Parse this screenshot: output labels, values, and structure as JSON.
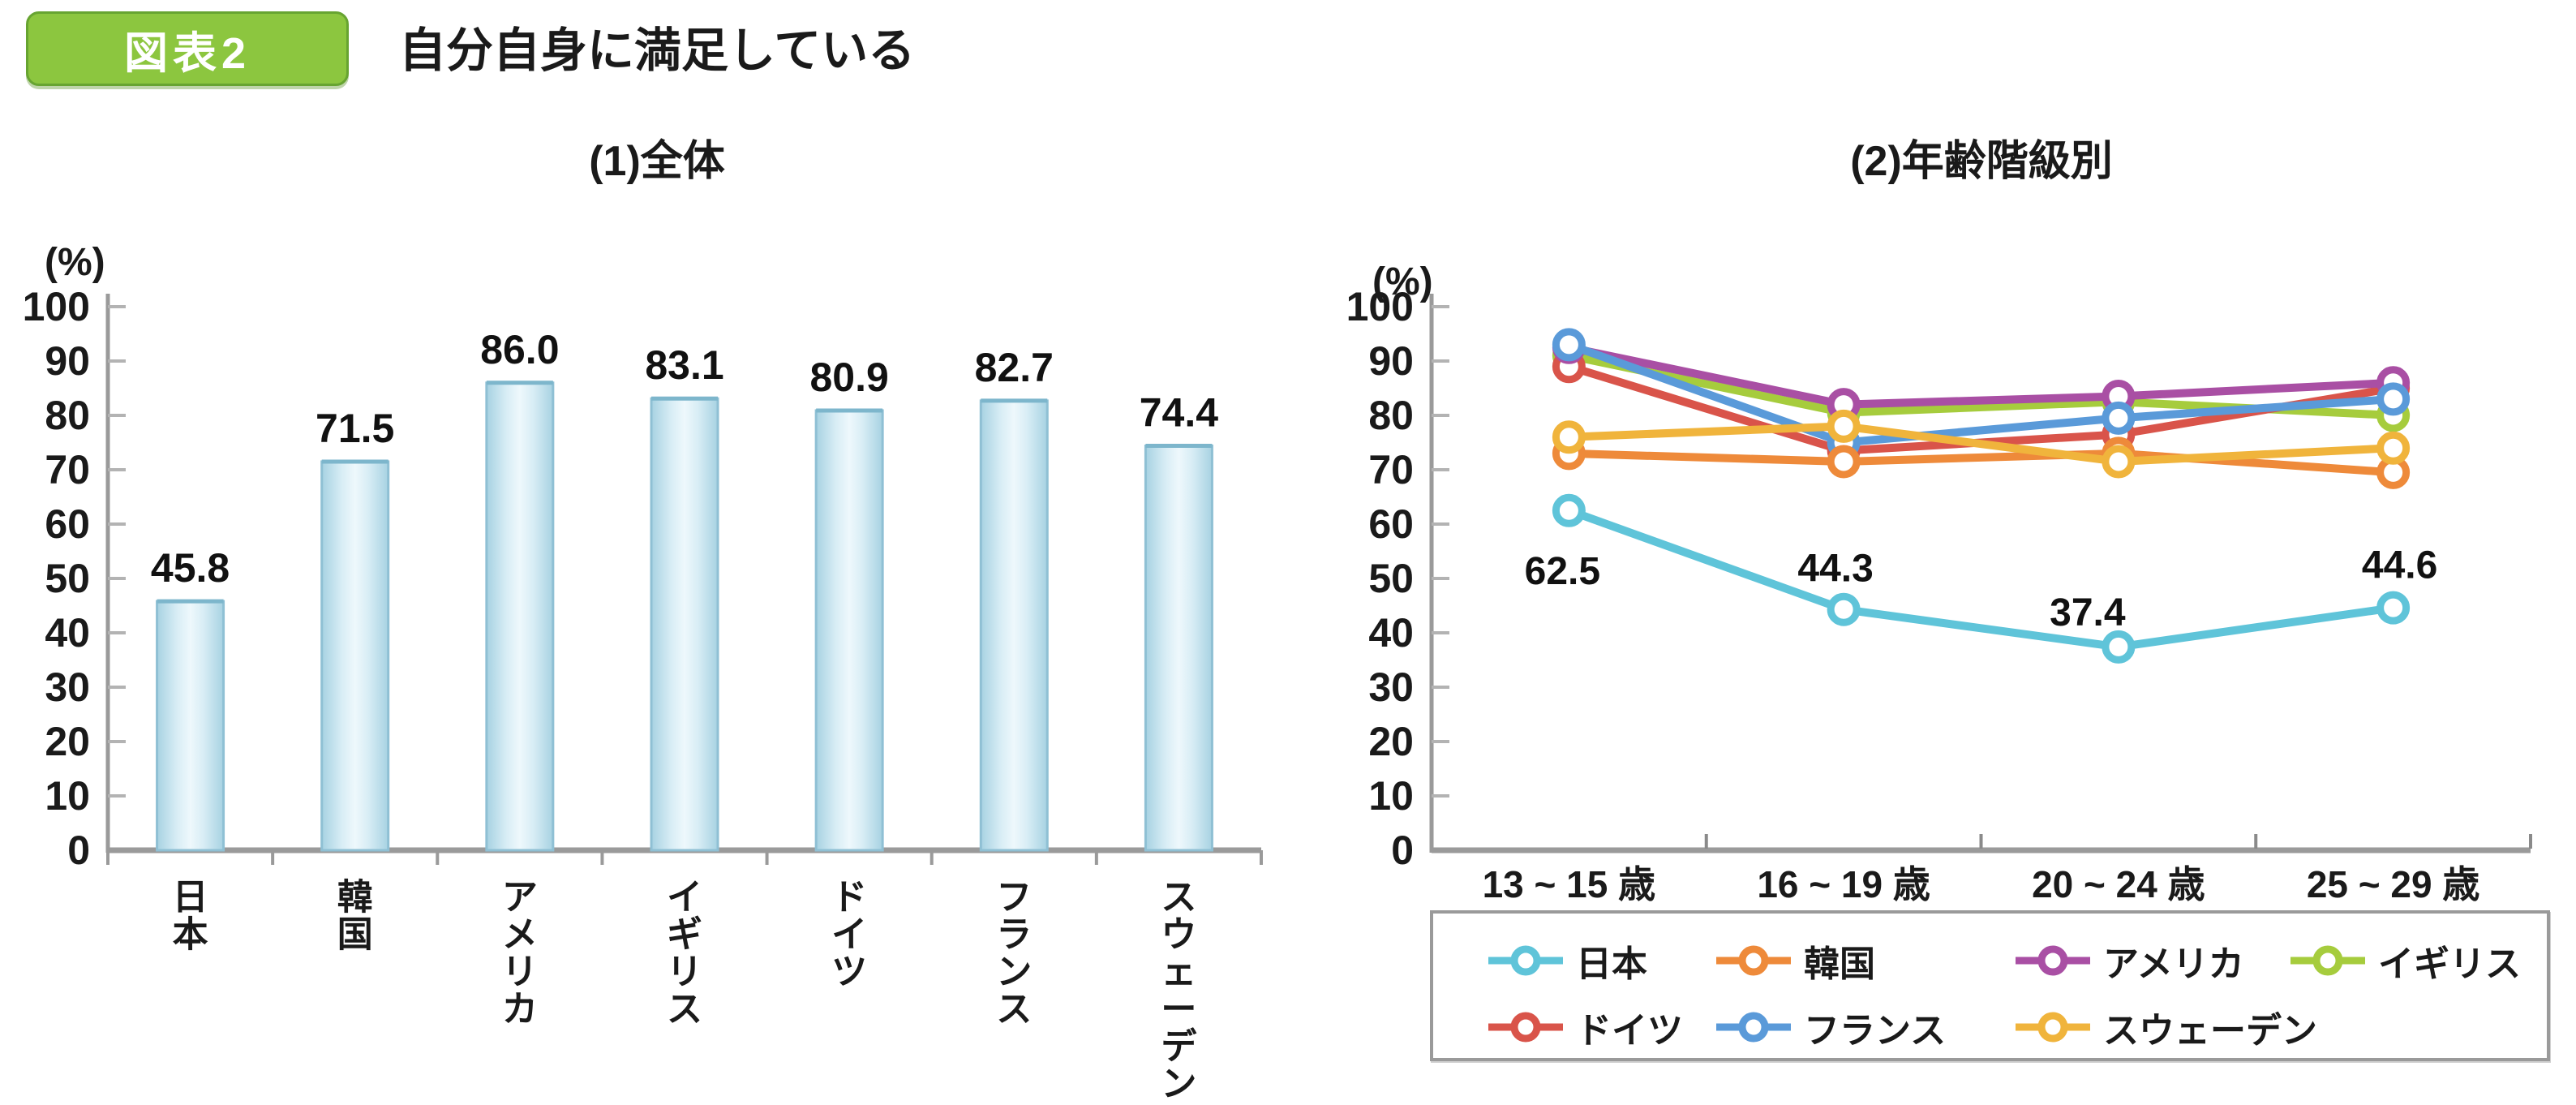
{
  "header": {
    "badge": "図表2",
    "title": "自分自身に満足している"
  },
  "colors": {
    "badge_green": "#8cc63f",
    "axis": "#9a9a9a",
    "tick": "#b3b3b3",
    "text": "#1a1a1a",
    "bar_fill_edge": "#a7d2e2",
    "bar_fill_center": "#eef8fc",
    "bar_stroke": "#8fc0d4"
  },
  "chart_data": [
    {
      "type": "bar",
      "title": "(1)全体",
      "unit_label": "(%)",
      "ylim": [
        0,
        100
      ],
      "ytick_step": 10,
      "grid": false,
      "categories": [
        "日本",
        "韓国",
        "アメリカ",
        "イギリス",
        "ドイツ",
        "フランス",
        "スウェーデン"
      ],
      "values": [
        45.8,
        71.5,
        86.0,
        83.1,
        80.9,
        82.7,
        74.4
      ]
    },
    {
      "type": "line",
      "title": "(2)年齢階級別",
      "unit_label": "(%)",
      "ylim": [
        0,
        100
      ],
      "ytick_step": 10,
      "grid": false,
      "legend_position": "bottom",
      "categories": [
        "13 ~ 15 歳",
        "16 ~ 19 歳",
        "20 ~ 24 歳",
        "25 ~ 29 歳"
      ],
      "series": [
        {
          "name": "イギリス",
          "color": "#a6cc3d",
          "values": [
            91.0,
            80.5,
            82.5,
            80.0
          ]
        },
        {
          "name": "ドイツ",
          "color": "#d9544a",
          "values": [
            89.0,
            73.5,
            76.5,
            85.0
          ]
        },
        {
          "name": "アメリカ",
          "color": "#a94fa4",
          "values": [
            92.5,
            82.0,
            83.5,
            86.0
          ]
        },
        {
          "name": "フランス",
          "color": "#5a9ad9",
          "values": [
            93.0,
            75.0,
            79.5,
            83.0
          ]
        },
        {
          "name": "韓国",
          "color": "#ee8a3a",
          "values": [
            73.0,
            71.5,
            73.0,
            69.5
          ]
        },
        {
          "name": "スウェーデン",
          "color": "#f0b43c",
          "values": [
            76.0,
            78.0,
            71.5,
            74.0
          ]
        },
        {
          "name": "日本",
          "color": "#5fc4d9",
          "values": [
            62.5,
            44.3,
            37.4,
            44.6
          ],
          "point_labels": [
            "62.5",
            "44.3",
            "37.4",
            "44.6"
          ],
          "label_offsets": [
            [
              -8,
              75
            ],
            [
              -10,
              -50
            ],
            [
              -38,
              -42
            ],
            [
              8,
              -52
            ]
          ]
        }
      ],
      "legend_rows": [
        [
          "日本",
          "韓国",
          "アメリカ",
          "イギリス"
        ],
        [
          "ドイツ",
          "フランス",
          "スウェーデン"
        ]
      ]
    }
  ]
}
